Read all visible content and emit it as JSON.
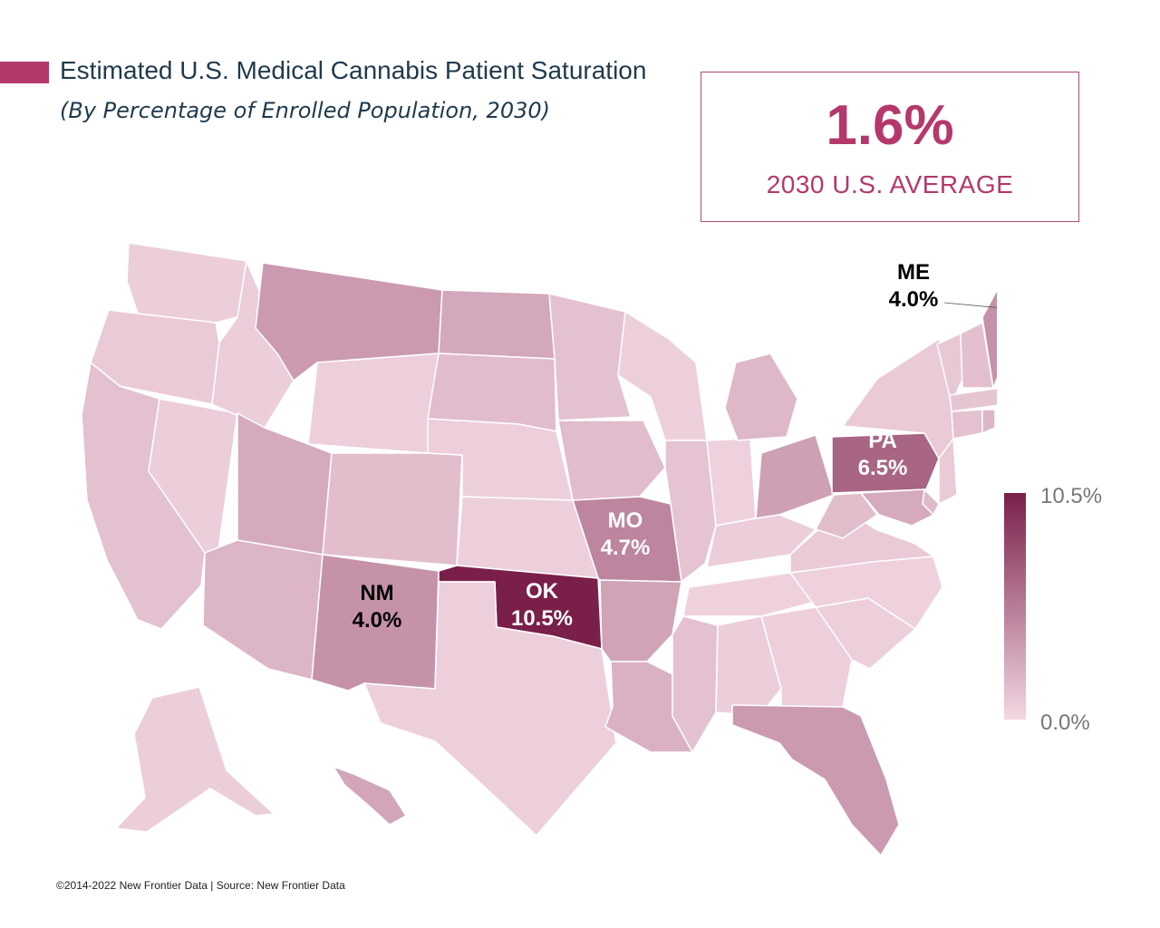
{
  "title": "Estimated U.S. Medical Cannabis Patient Saturation",
  "subtitle": "(By Percentage of Enrolled Population, 2030)",
  "average": {
    "value": "1.6%",
    "label": "2030 U.S. AVERAGE"
  },
  "legend": {
    "max_label": "10.5%",
    "min_label": "0.0%",
    "max": 10.5,
    "min": 0.0
  },
  "colors": {
    "accent": "#b5386d",
    "high": "#7a1f4a",
    "low": "#f3d8e3",
    "border": "#ffffff",
    "box_border": "#b04a78",
    "title": "#1f3a4d"
  },
  "callouts": [
    {
      "state": "ME",
      "value": "4.0%",
      "abbr": "ME"
    },
    {
      "state": "PA",
      "value": "6.5%",
      "abbr": "PA"
    },
    {
      "state": "MO",
      "value": "4.7%",
      "abbr": "MO"
    },
    {
      "state": "OK",
      "value": "10.5%",
      "abbr": "OK"
    },
    {
      "state": "NM",
      "value": "4.0%",
      "abbr": "NM"
    }
  ],
  "levels": {
    "WA": 0.6,
    "OR": 0.8,
    "CA": 1.3,
    "ID": 0.6,
    "NV": 0.6,
    "MT": 3.5,
    "WY": 0.5,
    "UT": 2.6,
    "AZ": 2.0,
    "CO": 1.5,
    "NM": 4.0,
    "ND": 2.7,
    "SD": 1.6,
    "NE": 0.5,
    "KS": 0.5,
    "OK": 10.5,
    "TX": 0.5,
    "MN": 1.3,
    "IA": 1.6,
    "MO": 4.7,
    "AR": 3.0,
    "LA": 2.2,
    "WI": 0.5,
    "IL": 1.2,
    "MI": 1.8,
    "IN": 0.4,
    "OH": 3.2,
    "KY": 0.6,
    "TN": 0.4,
    "MS": 1.3,
    "AL": 0.6,
    "GA": 0.5,
    "FL": 3.5,
    "SC": 0.5,
    "NC": 0.4,
    "VA": 0.8,
    "WV": 1.5,
    "PA": 6.5,
    "NY": 0.8,
    "VT": 0.9,
    "NH": 1.4,
    "ME": 4.0,
    "MA": 1.1,
    "CT": 1.3,
    "RI": 2.0,
    "NJ": 0.8,
    "DE": 1.7,
    "MD": 2.6,
    "AK": 0.6,
    "HI": 2.9
  },
  "footer": "©2014-2022  New Frontier Data | Source: New Frontier Data"
}
